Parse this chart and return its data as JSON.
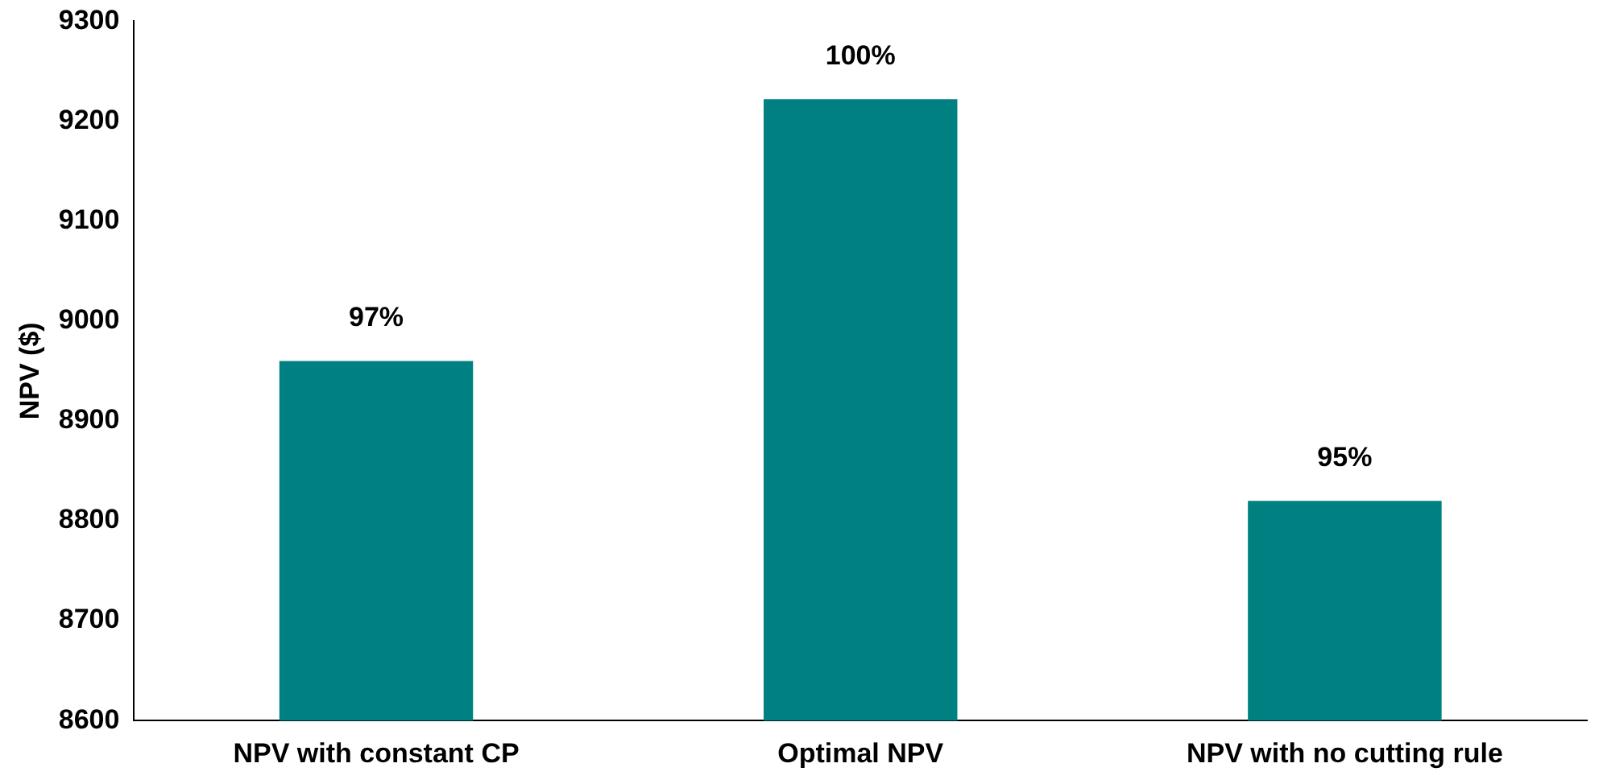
{
  "chart_data": {
    "type": "bar",
    "ylabel": "NPV ($)",
    "categories": [
      "NPV with constant CP",
      "Optimal NPV",
      "NPV with no cutting rule"
    ],
    "values": [
      8960,
      9222,
      8820
    ],
    "color": "#008080",
    "annotations": [
      {
        "text": "97%",
        "x": "NPV with constant CP",
        "y": 8960
      },
      {
        "text": "100%",
        "x": "Optimal NPV",
        "y": 9222
      },
      {
        "text": "95%",
        "x": "NPV with no cutting rule",
        "y": 8820
      }
    ],
    "ylim": [
      8600,
      9300
    ],
    "yticks": [
      8600,
      8700,
      8800,
      8900,
      9000,
      9100,
      9200,
      9300
    ],
    "grid": false,
    "legend": false
  }
}
